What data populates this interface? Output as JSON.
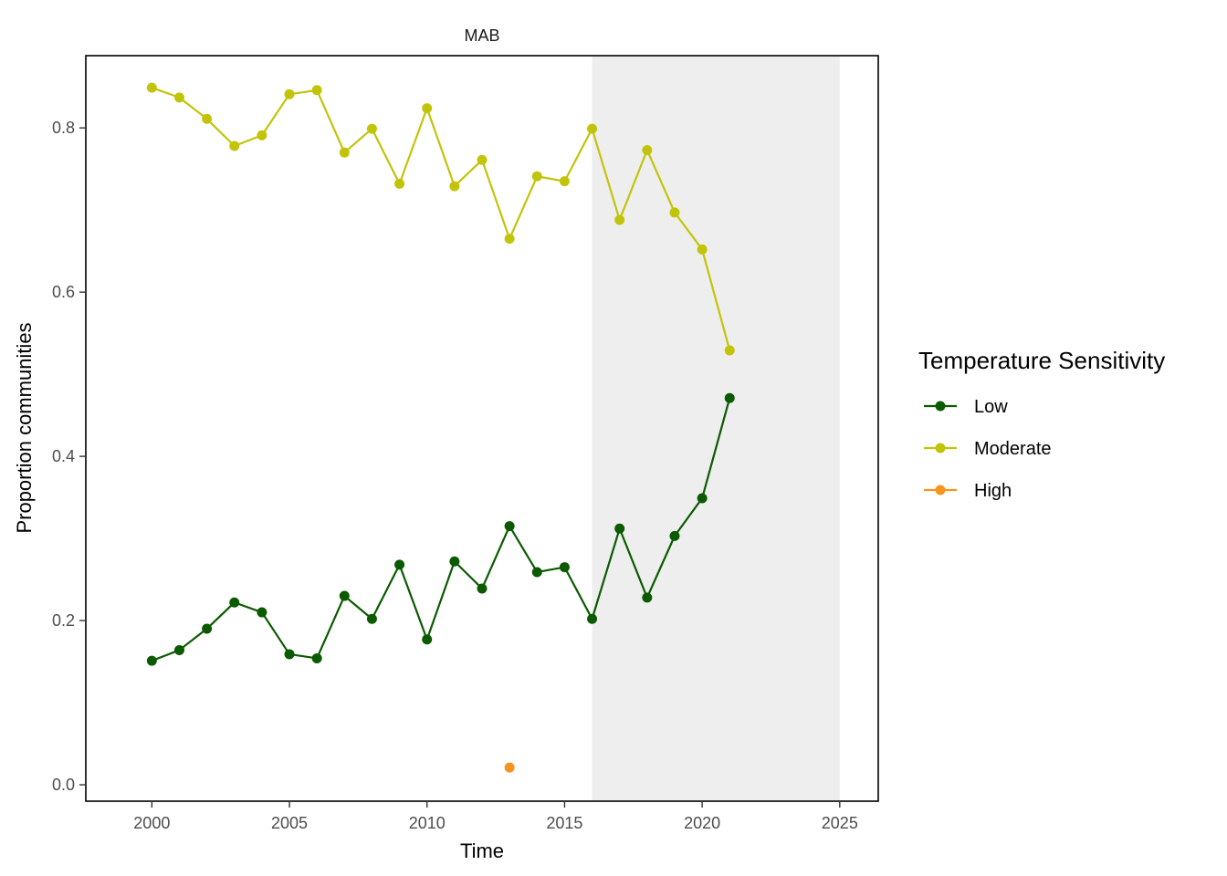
{
  "chart_data": {
    "type": "line",
    "title": "MAB",
    "xlabel": "Time",
    "ylabel": "Proportion communities",
    "xlim": [
      1997.6,
      2026.4
    ],
    "ylim": [
      -0.02,
      0.888
    ],
    "x_ticks": [
      2000,
      2005,
      2010,
      2015,
      2020,
      2025
    ],
    "y_ticks": [
      0.0,
      0.2,
      0.4,
      0.6,
      0.8
    ],
    "x_tick_labels": [
      "2000",
      "2005",
      "2010",
      "2015",
      "2020",
      "2025"
    ],
    "y_tick_labels": [
      "0.0",
      "0.2",
      "0.4",
      "0.6",
      "0.8"
    ],
    "grid": false,
    "shaded_region": {
      "x": [
        2016,
        2025
      ],
      "color": "#eeeeee"
    },
    "legend": {
      "title": "Temperature Sensitivity",
      "placement": "right",
      "entries": [
        "Low",
        "Moderate",
        "High"
      ]
    },
    "series": [
      {
        "name": "Low",
        "color": "#0b5a00",
        "x": [
          2000,
          2001,
          2002,
          2003,
          2004,
          2005,
          2006,
          2007,
          2008,
          2009,
          2010,
          2011,
          2012,
          2013,
          2014,
          2015,
          2016,
          2017,
          2018,
          2019,
          2020,
          2021
        ],
        "values": [
          0.151,
          0.164,
          0.19,
          0.222,
          0.21,
          0.159,
          0.154,
          0.23,
          0.202,
          0.268,
          0.177,
          0.272,
          0.239,
          0.315,
          0.259,
          0.265,
          0.202,
          0.312,
          0.228,
          0.303,
          0.349,
          0.471
        ]
      },
      {
        "name": "Moderate",
        "color": "#c2c40a",
        "x": [
          2000,
          2001,
          2002,
          2003,
          2004,
          2005,
          2006,
          2007,
          2008,
          2009,
          2010,
          2011,
          2012,
          2013,
          2014,
          2015,
          2016,
          2017,
          2018,
          2019,
          2020,
          2021
        ],
        "values": [
          0.849,
          0.837,
          0.811,
          0.778,
          0.791,
          0.841,
          0.846,
          0.77,
          0.799,
          0.732,
          0.824,
          0.729,
          0.761,
          0.665,
          0.741,
          0.735,
          0.799,
          0.688,
          0.773,
          0.697,
          0.652,
          0.529
        ]
      },
      {
        "name": "High",
        "color": "#f7941d",
        "x": [
          2013
        ],
        "values": [
          0.021
        ]
      }
    ]
  }
}
